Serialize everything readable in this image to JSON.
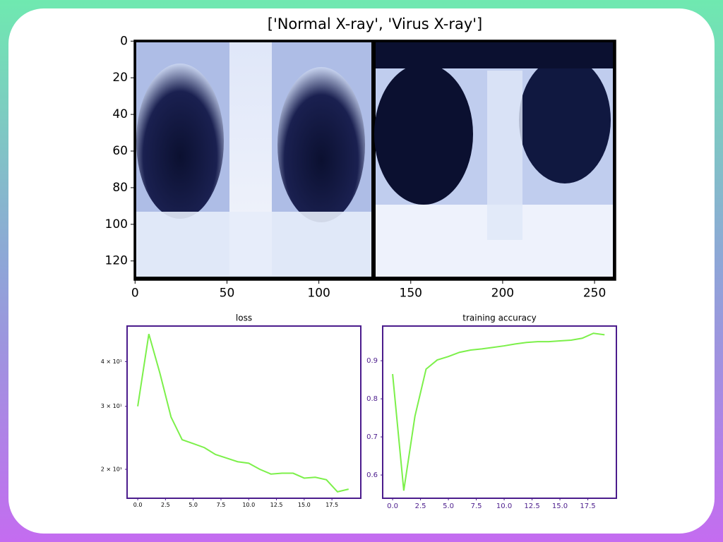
{
  "chart_data": [
    {
      "type": "image",
      "title": "['Normal X-ray', 'Virus X-ray']",
      "xlim": [
        -0.5,
        261.5
      ],
      "ylim": [
        130.5,
        -0.5
      ],
      "xticks": [
        0,
        50,
        100,
        150,
        200,
        250
      ],
      "yticks": [
        0,
        20,
        40,
        60,
        80,
        100,
        120
      ]
    },
    {
      "type": "line",
      "title": "loss",
      "yscale": "log",
      "color": "#7cf04a",
      "frame_color": "#4b1c8c",
      "tick_color": "#000000",
      "x": [
        0,
        1,
        2,
        3,
        4,
        5,
        6,
        7,
        8,
        9,
        10,
        11,
        12,
        13,
        14,
        15,
        16,
        17,
        18,
        19
      ],
      "values": [
        30.0,
        47.8,
        37.1,
        28.0,
        24.2,
        23.6,
        23.0,
        22.0,
        21.5,
        21.0,
        20.8,
        20.0,
        19.4,
        19.5,
        19.5,
        18.9,
        19.0,
        18.7,
        17.3,
        17.6
      ],
      "xlim": [
        -0.96,
        20.1
      ],
      "ylim": [
        16.6,
        50.3
      ],
      "xticks": [
        {
          "value": 0,
          "label": "0.0"
        },
        2.5,
        {
          "value": 5,
          "label": "5.0"
        },
        7.5,
        {
          "value": 10,
          "label": "10.0"
        },
        12.5,
        {
          "value": 15,
          "label": "15.0"
        },
        17.5
      ],
      "yticks": [
        {
          "value": 20,
          "label": "2 × 10¹"
        },
        {
          "value": 30,
          "label": "3 × 10¹"
        },
        {
          "value": 40,
          "label": "4 × 10¹"
        }
      ]
    },
    {
      "type": "line",
      "title": "training accuracy",
      "color": "#7cf04a",
      "frame_color": "#4b1c8c",
      "tick_color": "#4b1c8c",
      "x": [
        0,
        1,
        2,
        3,
        4,
        5,
        6,
        7,
        8,
        9,
        10,
        11,
        12,
        13,
        14,
        15,
        16,
        17,
        18,
        19
      ],
      "values": [
        0.865,
        0.559,
        0.754,
        0.878,
        0.902,
        0.911,
        0.922,
        0.928,
        0.931,
        0.935,
        0.939,
        0.944,
        0.948,
        0.95,
        0.95,
        0.952,
        0.954,
        0.959,
        0.972,
        0.968
      ],
      "xlim": [
        -0.89,
        20.06
      ],
      "ylim": [
        0.539,
        0.991
      ],
      "xticks": [
        {
          "value": 0,
          "label": "0.0"
        },
        2.5,
        {
          "value": 5,
          "label": "5.0"
        },
        7.5,
        {
          "value": 10,
          "label": "10.0"
        },
        12.5,
        {
          "value": 15,
          "label": "15.0"
        },
        17.5
      ],
      "yticks": [
        0.6,
        0.7,
        0.8,
        0.9
      ]
    }
  ]
}
